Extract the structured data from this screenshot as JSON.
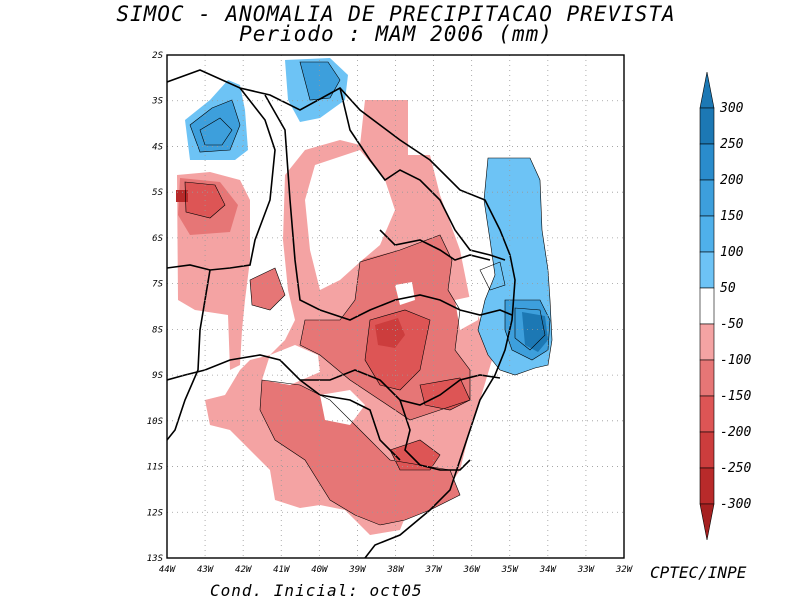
{
  "title": {
    "line1": "SIMOC -  ANOMALIA DE PRECIPITACAO PREVISTA",
    "line2": "Periodo : MAM 2006 (mm)"
  },
  "map": {
    "lat_ticks": [
      "2S",
      "3S",
      "4S",
      "5S",
      "6S",
      "7S",
      "8S",
      "9S",
      "10S",
      "11S",
      "12S",
      "13S"
    ],
    "lon_ticks": [
      "44W",
      "43W",
      "42W",
      "41W",
      "40W",
      "39W",
      "38W",
      "37W",
      "36W",
      "35W",
      "34W",
      "33W",
      "32W"
    ],
    "region": "Nordeste do Brasil",
    "extent": {
      "lon": [
        -44,
        -32
      ],
      "lat": [
        -13,
        -2
      ]
    }
  },
  "colorbar": {
    "labels": [
      "300",
      "250",
      "200",
      "150",
      "100",
      "50",
      "-50",
      "-100",
      "-150",
      "-200",
      "-250",
      "-300"
    ],
    "colors": {
      "top_arrow": "#1c78b4",
      "b250_300": "#1c78b4",
      "b200_250": "#2a8ccc",
      "b150_200": "#3d9fdc",
      "b100_150": "#4fb0ea",
      "b50_100": "#6dc3f5",
      "neutral": "#ffffff",
      "n50_100": "#f4a3a3",
      "n100_150": "#e67676",
      "n150_200": "#dd5555",
      "n200_250": "#cc3d3d",
      "n250_300": "#b82a2a",
      "bottom_arrow": "#a52020"
    }
  },
  "credit": "CPTEC/INPE",
  "initial_condition": "Cond. Inicial: oct05"
}
